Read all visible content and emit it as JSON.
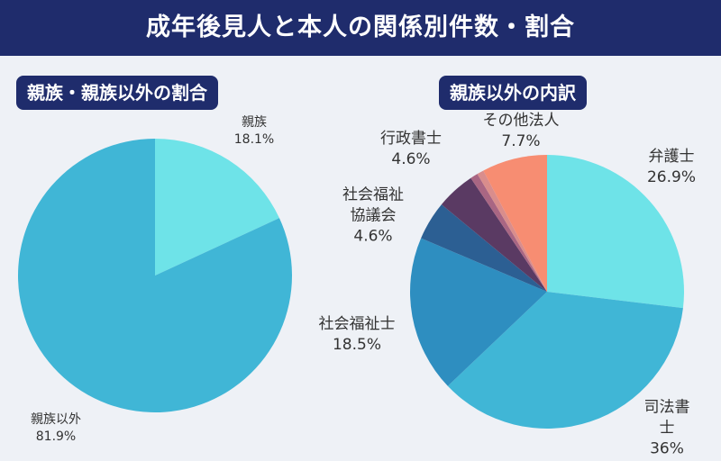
{
  "title": "成年後見人と本人の関係別件数・割合",
  "chart_data": [
    {
      "type": "pie",
      "title": "親族・親族以外の割合",
      "categories": [
        "親族",
        "親族以外"
      ],
      "values": [
        18.1,
        81.9
      ],
      "value_labels": [
        "18.1%",
        "81.9%"
      ],
      "colors": [
        "#6ee3e8",
        "#40b6d6"
      ]
    },
    {
      "type": "pie",
      "title": "親族以外の内訳",
      "categories": [
        "弁護士",
        "司法書士",
        "社会福祉士",
        "社会福祉協議会",
        "行政書士",
        null,
        null,
        "その他法人"
      ],
      "values": [
        26.9,
        36,
        18.5,
        4.6,
        4.6,
        0.9,
        0.8,
        7.7
      ],
      "value_labels": [
        "26.9%",
        "36%",
        "18.5%",
        "4.6%",
        "4.6%",
        null,
        null,
        "7.7%"
      ],
      "colors": [
        "#6ee3e8",
        "#40b6d6",
        "#2e8ec0",
        "#2c5f93",
        "#5a3a63",
        "#a96683",
        "#d98d8c",
        "#f78d72"
      ]
    }
  ]
}
